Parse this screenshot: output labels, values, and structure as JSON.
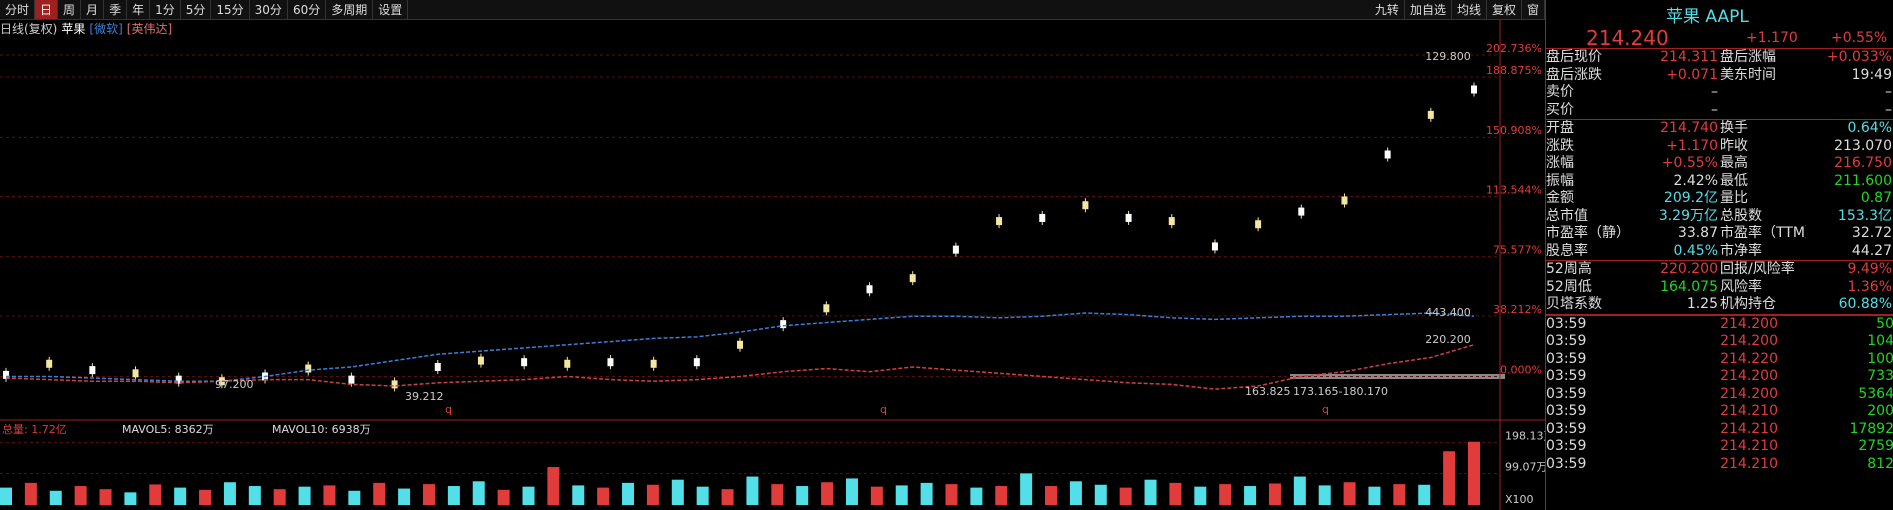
{
  "toolbar": {
    "left": [
      "分时",
      "日",
      "周",
      "月",
      "季",
      "年",
      "1分",
      "5分",
      "15分",
      "30分",
      "60分",
      "多周期",
      "设置"
    ],
    "right": [
      "九转",
      "加自选",
      "均线",
      "复权",
      "窗"
    ]
  },
  "chart_header": [
    "日线(复权)",
    "苹果",
    "[微软]",
    "[英伟达]"
  ],
  "chart_data": [
    {
      "type": "line",
      "series": [
        {
          "name": "苹果",
          "color": "#f2e6a0",
          "values": [
            1,
            8,
            4,
            2,
            -2,
            -3,
            0,
            5,
            -2,
            -5,
            6,
            10,
            9,
            8,
            9,
            8,
            9,
            20,
            33,
            43,
            55,
            62,
            80,
            98,
            100,
            108,
            100,
            98,
            82,
            96,
            104,
            111,
            140,
            165,
            181
          ]
        },
        {
          "name": "微软",
          "color": "#3c7fd8",
          "values": [
            0,
            0,
            -1,
            -2,
            -3,
            -3,
            0,
            4,
            6,
            10,
            14,
            16,
            18,
            20,
            22,
            24,
            25,
            28,
            32,
            34,
            36,
            38,
            38,
            37,
            38,
            40,
            39,
            37,
            36,
            37,
            38,
            38,
            39,
            40,
            38
          ]
        },
        {
          "name": "英伟达",
          "color": "#d04040",
          "values": [
            -1,
            -2,
            -3,
            -3,
            -4,
            -3,
            -2,
            -2,
            -5,
            -6,
            -4,
            -3,
            -2,
            0,
            -2,
            -3,
            -2,
            0,
            3,
            5,
            3,
            6,
            4,
            2,
            0,
            -2,
            -4,
            -5,
            -8,
            -6,
            0,
            3,
            8,
            12,
            20
          ]
        }
      ],
      "ylim": [
        -21.15,
        212.22
      ],
      "yticks": [
        {
          "value": 202.736,
          "label": "202.736%"
        },
        {
          "value": 188.875,
          "label": "188.875%"
        },
        {
          "value": 150.908,
          "label": "150.908%"
        },
        {
          "value": 113.544,
          "label": "113.544%"
        },
        {
          "value": 75.577,
          "label": "75.577%"
        },
        {
          "value": 38.212,
          "label": "38.212%"
        },
        {
          "value": 0,
          "label": "0.000%"
        }
      ],
      "grid": true,
      "annotations": [
        "129.800",
        "443.400",
        "220.200",
        "97.200",
        "39.212",
        "163.825",
        "173.165-180.170",
        "q",
        "q",
        "q"
      ]
    },
    {
      "type": "bar",
      "header": [
        "总量: 1.72亿",
        "MAVOL5: 8362万",
        "MAVOL10: 6938万"
      ],
      "values": [
        55,
        70,
        45,
        60,
        50,
        40,
        65,
        55,
        48,
        72,
        60,
        50,
        58,
        62,
        45,
        70,
        52,
        66,
        60,
        75,
        48,
        58,
        120,
        62,
        55,
        70,
        64,
        80,
        58,
        50,
        90,
        66,
        60,
        72,
        84,
        58,
        62,
        70,
        66,
        55,
        60,
        100,
        60,
        75,
        64,
        55,
        80,
        70,
        58,
        66,
        60,
        68,
        90,
        62,
        72,
        58,
        66,
        64,
        170,
        200
      ],
      "colors": [
        "#52dfe8",
        "#e03c3c",
        "#52dfe8",
        "#e03c3c",
        "#e03c3c",
        "#52dfe8",
        "#e03c3c",
        "#52dfe8",
        "#e03c3c",
        "#52dfe8",
        "#52dfe8",
        "#e03c3c",
        "#52dfe8",
        "#e03c3c",
        "#52dfe8",
        "#e03c3c",
        "#52dfe8",
        "#e03c3c",
        "#52dfe8",
        "#52dfe8",
        "#e03c3c",
        "#52dfe8",
        "#e03c3c",
        "#52dfe8",
        "#e03c3c",
        "#52dfe8",
        "#e03c3c",
        "#52dfe8",
        "#52dfe8",
        "#e03c3c",
        "#52dfe8",
        "#e03c3c",
        "#52dfe8",
        "#e03c3c",
        "#52dfe8",
        "#e03c3c",
        "#52dfe8",
        "#52dfe8",
        "#e03c3c",
        "#52dfe8",
        "#e03c3c",
        "#52dfe8",
        "#e03c3c",
        "#52dfe8",
        "#52dfe8",
        "#e03c3c",
        "#52dfe8",
        "#e03c3c",
        "#52dfe8",
        "#e03c3c",
        "#52dfe8",
        "#e03c3c",
        "#52dfe8",
        "#52dfe8",
        "#e03c3c",
        "#52dfe8",
        "#e03c3c",
        "#52dfe8",
        "#e03c3c",
        "#e03c3c"
      ],
      "ylim": [
        0,
        253
      ],
      "yticks": [
        {
          "value": 198.13,
          "label": "198.13万"
        },
        {
          "value": 99.07,
          "label": "99.07万"
        }
      ],
      "unit": "X100"
    }
  ],
  "quote": {
    "name": "苹果 AAPL",
    "price": "214.240",
    "change": "+1.170",
    "pct": "+0.55%",
    "rows": [
      {
        "cells": [
          "盘后现价",
          "214.311",
          "盘后涨幅",
          "+0.033%"
        ],
        "colors": [
          "#e03c3c",
          "#e03c3c"
        ]
      },
      {
        "cells": [
          "盘后涨跌",
          "+0.071",
          "美东时间",
          "19:49"
        ],
        "colors": [
          "#e03c3c",
          "#dddddd"
        ]
      },
      {
        "cells": [
          "卖价",
          "–",
          "",
          "–"
        ],
        "colors": [
          "#dddddd",
          "#dddddd"
        ]
      },
      {
        "cells": [
          "买价",
          "–",
          "",
          "–"
        ],
        "colors": [
          "#dddddd",
          "#dddddd"
        ]
      },
      {
        "cells": [
          "开盘",
          "214.740",
          "换手",
          "0.64%"
        ],
        "colors": [
          "#e03c3c",
          "#52dfe8"
        ]
      },
      {
        "cells": [
          "涨跌",
          "+1.170",
          "昨收",
          "213.070"
        ],
        "colors": [
          "#e03c3c",
          "#dddddd"
        ]
      },
      {
        "cells": [
          "涨幅",
          "+0.55%",
          "最高",
          "216.750"
        ],
        "colors": [
          "#e03c3c",
          "#e03c3c"
        ]
      },
      {
        "cells": [
          "振幅",
          "2.42%",
          "最低",
          "211.600"
        ],
        "colors": [
          "#dddddd",
          "#1fd81f"
        ]
      },
      {
        "cells": [
          "金额",
          "209.2亿",
          "量比",
          "0.87"
        ],
        "colors": [
          "#52dfe8",
          "#1fd81f"
        ]
      },
      {
        "cells": [
          "总市值",
          "3.29万亿",
          "总股数",
          "153.3亿"
        ],
        "colors": [
          "#52dfe8",
          "#52dfe8"
        ]
      },
      {
        "cells": [
          "市盈率（静）",
          "33.87",
          "市盈率（TTM）",
          "32.72"
        ],
        "colors": [
          "#dddddd",
          "#dddddd"
        ]
      },
      {
        "cells": [
          "股息率",
          "0.45%",
          "市净率",
          "44.27"
        ],
        "colors": [
          "#52dfe8",
          "#dddddd"
        ]
      },
      {
        "cells": [
          "52周高",
          "220.200",
          "回报/风险率",
          "9.49%"
        ],
        "colors": [
          "#e03c3c",
          "#e03c3c"
        ]
      },
      {
        "cells": [
          "52周低",
          "164.075",
          "风险率",
          "1.36%"
        ],
        "colors": [
          "#1fd81f",
          "#e03c3c"
        ]
      },
      {
        "cells": [
          "贝塔系数",
          "1.25",
          "机构持仓",
          "60.88%"
        ],
        "colors": [
          "#dddddd",
          "#52dfe8"
        ]
      }
    ],
    "trades": [
      [
        "03:59",
        "214.200",
        "50"
      ],
      [
        "03:59",
        "214.200",
        "104"
      ],
      [
        "03:59",
        "214.220",
        "100"
      ],
      [
        "03:59",
        "214.200",
        "733"
      ],
      [
        "03:59",
        "214.200",
        "5364"
      ],
      [
        "03:59",
        "214.210",
        "200"
      ],
      [
        "03:59",
        "214.210",
        "17892"
      ],
      [
        "03:59",
        "214.210",
        "2759"
      ],
      [
        "03:59",
        "214.210",
        "812"
      ]
    ]
  }
}
